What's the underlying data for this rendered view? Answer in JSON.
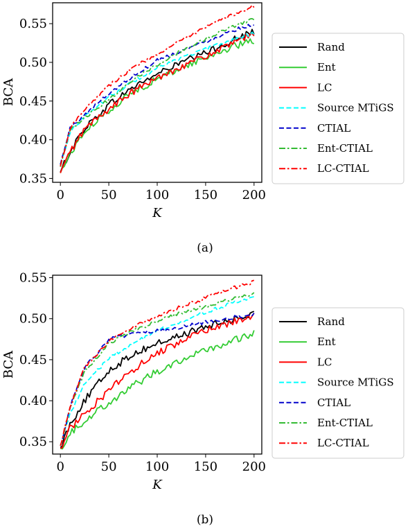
{
  "chart_data": [
    {
      "type": "line",
      "caption": "(a)",
      "xlabel": "K",
      "ylabel": "BCA",
      "xlim": [
        -8,
        208
      ],
      "ylim": [
        0.345,
        0.577
      ],
      "xticks": [
        0,
        50,
        100,
        150,
        200
      ],
      "yticks": [
        0.35,
        0.4,
        0.45,
        0.5,
        0.55
      ],
      "ytick_labels": [
        "0.35",
        "0.40",
        "0.45",
        "0.50",
        "0.55"
      ],
      "legend_position": "right",
      "grid": false,
      "series": [
        {
          "name": "Rand",
          "color": "#000000",
          "dash": "solid",
          "x": [
            0,
            10,
            25,
            50,
            75,
            100,
            125,
            150,
            175,
            200
          ],
          "y": [
            0.358,
            0.385,
            0.415,
            0.445,
            0.468,
            0.485,
            0.5,
            0.512,
            0.527,
            0.54
          ]
        },
        {
          "name": "Ent",
          "color": "#33cc33",
          "dash": "solid",
          "x": [
            0,
            10,
            25,
            50,
            75,
            100,
            125,
            150,
            175,
            200
          ],
          "y": [
            0.357,
            0.382,
            0.41,
            0.438,
            0.462,
            0.478,
            0.493,
            0.506,
            0.519,
            0.528
          ]
        },
        {
          "name": "LC",
          "color": "#ff0000",
          "dash": "solid",
          "x": [
            0,
            10,
            25,
            50,
            75,
            100,
            125,
            150,
            175,
            200
          ],
          "y": [
            0.357,
            0.384,
            0.414,
            0.44,
            0.462,
            0.48,
            0.495,
            0.508,
            0.522,
            0.538
          ]
        },
        {
          "name": "Source MTiGS",
          "color": "#00ffff",
          "dash": "dashed",
          "x": [
            0,
            10,
            25,
            50,
            75,
            100,
            125,
            150,
            175,
            200
          ],
          "y": [
            0.368,
            0.41,
            0.43,
            0.455,
            0.475,
            0.492,
            0.506,
            0.517,
            0.528,
            0.538
          ]
        },
        {
          "name": "CTIAL",
          "color": "#0000cc",
          "dash": "dashed",
          "x": [
            0,
            10,
            25,
            50,
            75,
            100,
            125,
            150,
            175,
            200
          ],
          "y": [
            0.368,
            0.415,
            0.432,
            0.46,
            0.482,
            0.503,
            0.515,
            0.527,
            0.54,
            0.55
          ]
        },
        {
          "name": "Ent-CTIAL",
          "color": "#33bb33",
          "dash": "dashdot",
          "x": [
            0,
            10,
            25,
            50,
            75,
            100,
            125,
            150,
            175,
            200
          ],
          "y": [
            0.365,
            0.412,
            0.428,
            0.452,
            0.478,
            0.497,
            0.515,
            0.53,
            0.545,
            0.557
          ]
        },
        {
          "name": "LC-CTIAL",
          "color": "#ff0000",
          "dash": "dashdot",
          "x": [
            0,
            10,
            25,
            50,
            75,
            100,
            125,
            150,
            175,
            200
          ],
          "y": [
            0.366,
            0.415,
            0.44,
            0.47,
            0.493,
            0.511,
            0.528,
            0.545,
            0.56,
            0.573
          ]
        }
      ]
    },
    {
      "type": "line",
      "caption": "(b)",
      "xlabel": "K",
      "ylabel": "BCA",
      "xlim": [
        -8,
        208
      ],
      "ylim": [
        0.335,
        0.553
      ],
      "xticks": [
        0,
        50,
        100,
        150,
        200
      ],
      "yticks": [
        0.35,
        0.4,
        0.45,
        0.5,
        0.55
      ],
      "ytick_labels": [
        "0.35",
        "0.40",
        "0.45",
        "0.50",
        "0.55"
      ],
      "legend_position": "right",
      "grid": false,
      "series": [
        {
          "name": "Rand",
          "color": "#000000",
          "dash": "solid",
          "x": [
            0,
            10,
            25,
            50,
            75,
            100,
            125,
            150,
            175,
            200
          ],
          "y": [
            0.343,
            0.372,
            0.4,
            0.437,
            0.457,
            0.47,
            0.48,
            0.49,
            0.498,
            0.505
          ]
        },
        {
          "name": "Ent",
          "color": "#33cc33",
          "dash": "solid",
          "x": [
            0,
            10,
            25,
            50,
            75,
            100,
            125,
            150,
            175,
            200
          ],
          "y": [
            0.342,
            0.36,
            0.376,
            0.398,
            0.418,
            0.436,
            0.45,
            0.461,
            0.472,
            0.482
          ]
        },
        {
          "name": "LC",
          "color": "#ff0000",
          "dash": "solid",
          "x": [
            0,
            10,
            25,
            50,
            75,
            100,
            125,
            150,
            175,
            200
          ],
          "y": [
            0.342,
            0.366,
            0.385,
            0.412,
            0.438,
            0.458,
            0.473,
            0.485,
            0.495,
            0.503
          ]
        },
        {
          "name": "Source MTiGS",
          "color": "#00ffff",
          "dash": "dashed",
          "x": [
            0,
            10,
            25,
            50,
            75,
            100,
            125,
            150,
            175,
            200
          ],
          "y": [
            0.345,
            0.385,
            0.42,
            0.452,
            0.47,
            0.485,
            0.497,
            0.508,
            0.518,
            0.525
          ]
        },
        {
          "name": "CTIAL",
          "color": "#0000cc",
          "dash": "dashed",
          "x": [
            0,
            10,
            25,
            50,
            75,
            100,
            125,
            150,
            175,
            200
          ],
          "y": [
            0.345,
            0.392,
            0.44,
            0.475,
            0.481,
            0.485,
            0.49,
            0.496,
            0.501,
            0.505
          ]
        },
        {
          "name": "Ent-CTIAL",
          "color": "#33bb33",
          "dash": "dashdot",
          "x": [
            0,
            10,
            25,
            50,
            75,
            100,
            125,
            150,
            175,
            200
          ],
          "y": [
            0.345,
            0.39,
            0.436,
            0.47,
            0.485,
            0.497,
            0.507,
            0.515,
            0.523,
            0.53
          ]
        },
        {
          "name": "LC-CTIAL",
          "color": "#ff0000",
          "dash": "dashdot",
          "x": [
            0,
            10,
            25,
            50,
            75,
            100,
            125,
            150,
            175,
            200
          ],
          "y": [
            0.345,
            0.392,
            0.44,
            0.473,
            0.49,
            0.503,
            0.515,
            0.525,
            0.536,
            0.545
          ]
        }
      ]
    }
  ]
}
